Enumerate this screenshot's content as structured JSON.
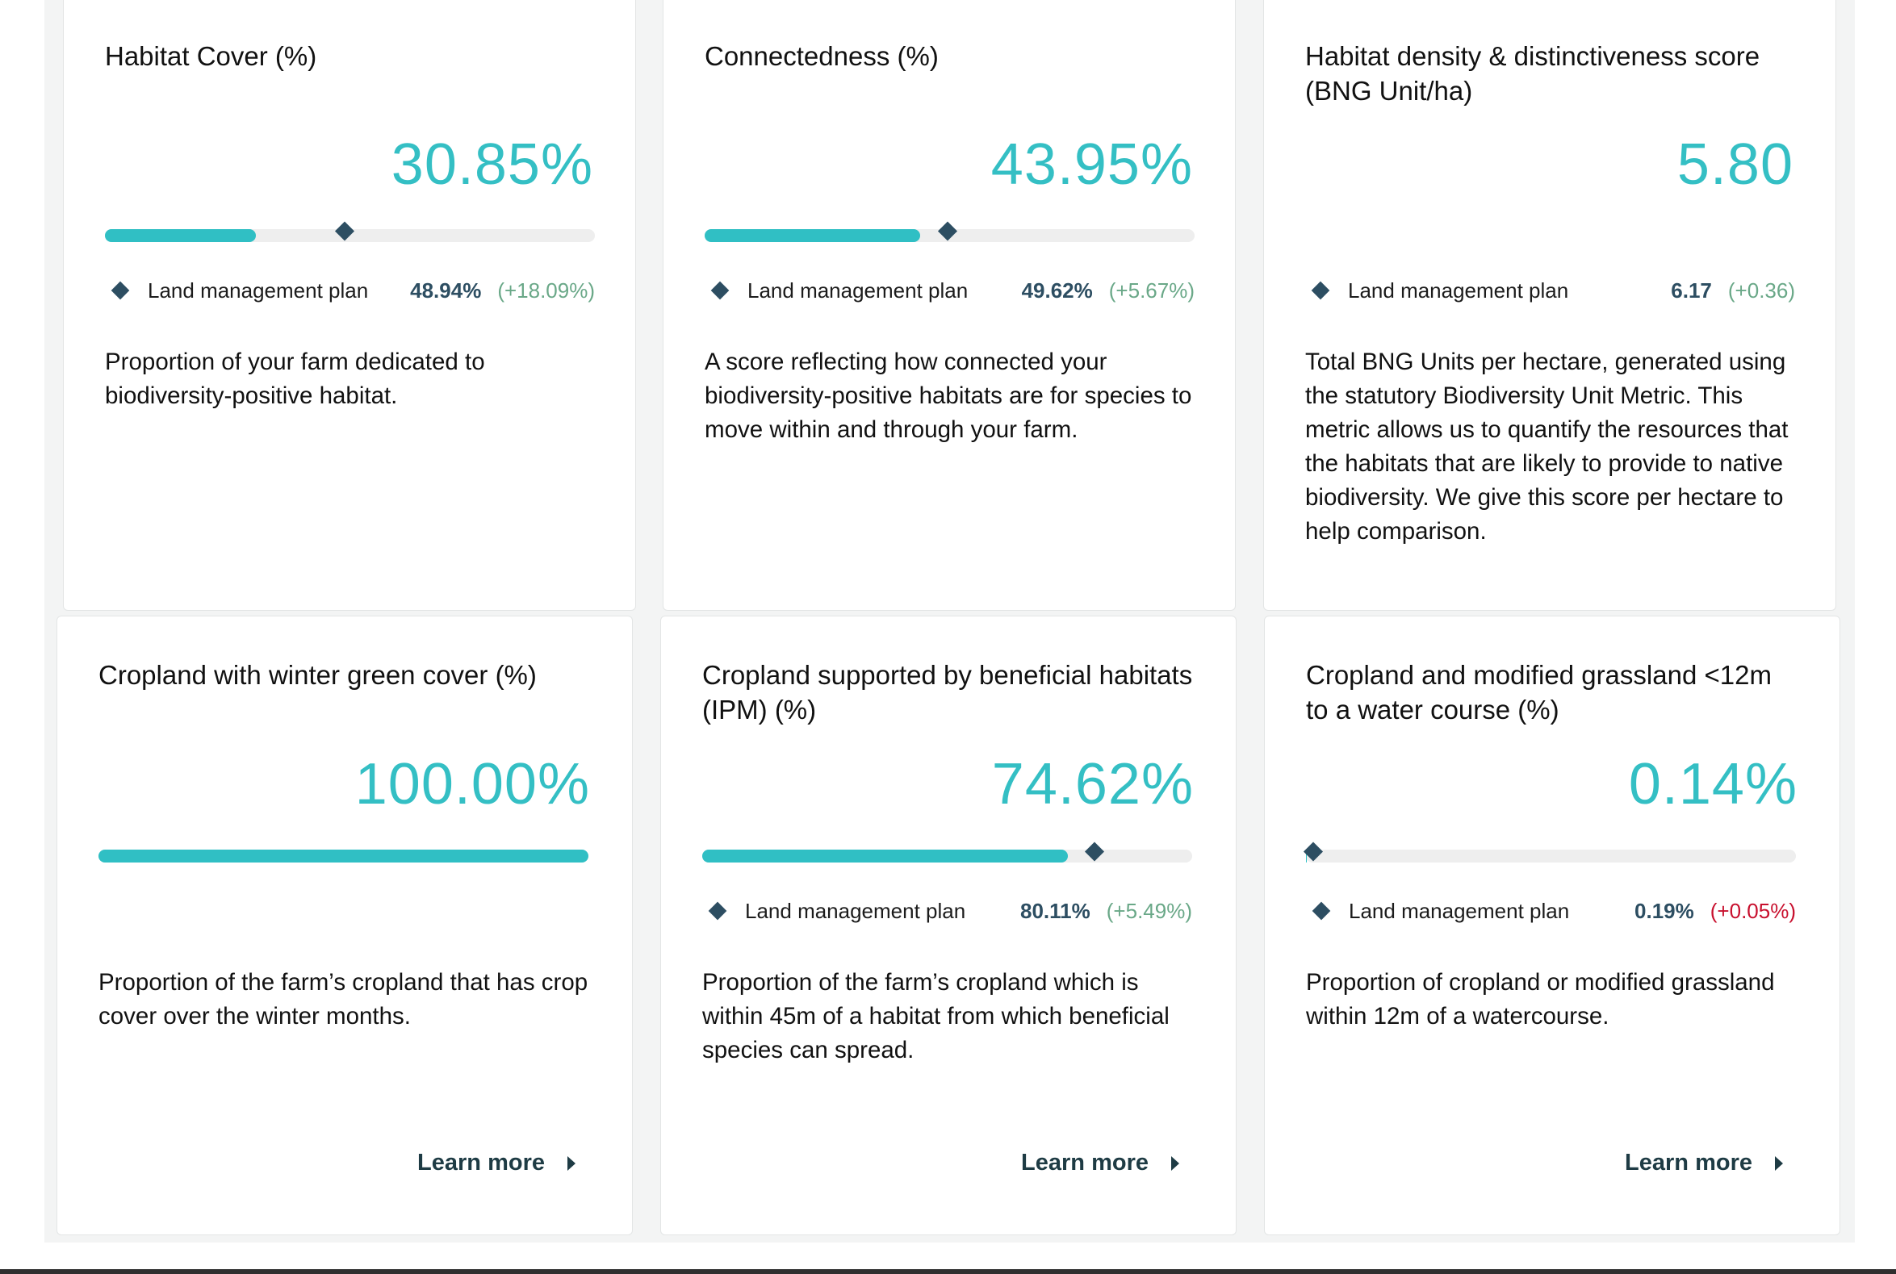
{
  "legend_label": "Land management plan",
  "learn_more_label": "Learn more",
  "cards": [
    {
      "title": "Habitat Cover (%)",
      "value": "30.85%",
      "progress_percent": 30.85,
      "plan_percent": 48.94,
      "plan_value": "48.94%",
      "delta": "(+18.09%)",
      "description": "Proportion of your farm dedicated to biodiversity-positive habitat."
    },
    {
      "title": "Connectedness (%)",
      "value": "43.95%",
      "progress_percent": 43.95,
      "plan_percent": 49.62,
      "plan_value": "49.62%",
      "delta": "(+5.67%)",
      "description": "A score reflecting how connected your biodiversity-positive habitats are for species to move within and through your farm."
    },
    {
      "title": "Habitat density & distinctiveness score (BNG Unit/ha)",
      "value": "5.80",
      "plan_value": "6.17",
      "delta": "(+0.36)",
      "description": "Total BNG Units per hectare, generated using the statutory Biodiversity Unit Metric. This metric allows us to quantify the resources that the habitats that are likely to provide to native biodiversity. We give this score per hectare to help comparison."
    },
    {
      "title": "Cropland with winter green cover (%)",
      "value": "100.00%",
      "progress_percent": 100,
      "description": "Proportion of the farm’s cropland that has crop cover over the winter months."
    },
    {
      "title": "Cropland supported by beneficial habitats (IPM) (%)",
      "value": "74.62%",
      "progress_percent": 74.62,
      "plan_percent": 80.11,
      "plan_value": "80.11%",
      "delta": "(+5.49%)",
      "description": "Proportion of the farm’s cropland which is within 45m of a habitat from which beneficial species can spread."
    },
    {
      "title": "Cropland and modified grassland <12m to a water course (%)",
      "value": "0.14%",
      "progress_percent": 0.14,
      "plan_percent": 0.19,
      "plan_value": "0.19%",
      "delta": "(+0.05%)",
      "description": "Proportion of cropland or modified grassland within 12m of a watercourse."
    }
  ]
}
